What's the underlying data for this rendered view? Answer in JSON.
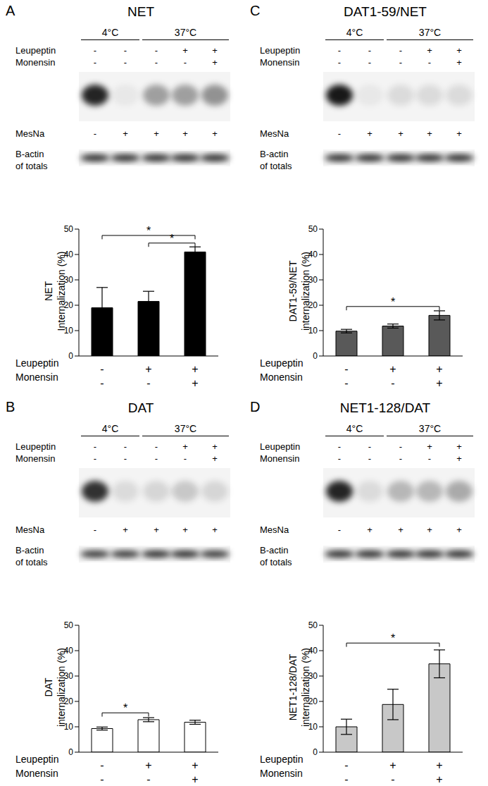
{
  "chart_data": [
    {
      "panel": "A",
      "type": "bar",
      "title": "NET",
      "ylabel": [
        "NET",
        "Internalization (%)"
      ],
      "categories": [
        null,
        null,
        null
      ],
      "values": [
        19,
        21.5,
        41
      ],
      "errors": [
        8,
        4,
        2
      ],
      "color": "#000000",
      "ylim": [
        0,
        50
      ],
      "yticks": [
        0,
        10,
        20,
        30,
        40,
        50
      ],
      "conditions": [
        {
          "name": "Leupeptin",
          "values": [
            "-",
            "+",
            "+"
          ]
        },
        {
          "name": "Monensin",
          "values": [
            "-",
            "-",
            "+"
          ]
        }
      ],
      "significance": [
        {
          "from": 0,
          "to": 2,
          "y": 47.5,
          "label": "*"
        },
        {
          "from": 1,
          "to": 2,
          "y": 44.5,
          "label": "*"
        }
      ],
      "blot": {
        "temperatures": [
          {
            "label": "4°C",
            "lanes": [
              0,
              1
            ]
          },
          {
            "label": "37°C",
            "lanes": [
              2,
              4
            ]
          }
        ],
        "treatments": [
          {
            "name": "Leupeptin",
            "values": [
              "-",
              "-",
              "-",
              "+",
              "+"
            ]
          },
          {
            "name": "Monensin",
            "values": [
              "-",
              "-",
              "-",
              "-",
              "+"
            ]
          }
        ],
        "mesna": {
          "name": "MesNa",
          "values": [
            "-",
            "+",
            "+",
            "+",
            "+"
          ]
        },
        "loading_label": [
          "B-actin",
          "of totals"
        ],
        "band_intensity": [
          0.85,
          0.05,
          0.35,
          0.35,
          0.4
        ],
        "actin_intensity": [
          0.85,
          0.85,
          0.85,
          0.85,
          0.85
        ]
      }
    },
    {
      "panel": "B",
      "type": "bar",
      "title": "DAT",
      "ylabel": [
        "DAT",
        "internalization (%)"
      ],
      "categories": [
        null,
        null,
        null
      ],
      "values": [
        9.3,
        12.8,
        11.8
      ],
      "errors": [
        0.6,
        0.8,
        0.8
      ],
      "color": "#ffffff",
      "ylim": [
        0,
        50
      ],
      "yticks": [
        0,
        10,
        20,
        30,
        40,
        50
      ],
      "conditions": [
        {
          "name": "Leupeptin",
          "values": [
            "-",
            "+",
            "+"
          ]
        },
        {
          "name": "Monensin",
          "values": [
            "-",
            "-",
            "+"
          ]
        }
      ],
      "significance": [
        {
          "from": 0,
          "to": 1,
          "y": 15.5,
          "label": "*"
        }
      ],
      "blot": {
        "temperatures": [
          {
            "label": "4°C",
            "lanes": [
              0,
              1
            ]
          },
          {
            "label": "37°C",
            "lanes": [
              2,
              4
            ]
          }
        ],
        "treatments": [
          {
            "name": "Leupeptin",
            "values": [
              "-",
              "-",
              "-",
              "+",
              "+"
            ]
          },
          {
            "name": "Monensin",
            "values": [
              "-",
              "-",
              "-",
              "-",
              "+"
            ]
          }
        ],
        "mesna": {
          "name": "MesNa",
          "values": [
            "-",
            "+",
            "+",
            "+",
            "+"
          ]
        },
        "loading_label": [
          "B-actin",
          "of totals"
        ],
        "band_intensity": [
          0.8,
          0.1,
          0.12,
          0.18,
          0.12
        ],
        "actin_intensity": [
          0.8,
          0.8,
          0.85,
          0.85,
          0.8
        ]
      }
    },
    {
      "panel": "C",
      "type": "bar",
      "title": "DAT1-59/NET",
      "ylabel": [
        "DAT1-59/NET",
        "internalization (%)"
      ],
      "categories": [
        null,
        null,
        null
      ],
      "values": [
        9.8,
        11.8,
        16
      ],
      "errors": [
        0.7,
        0.8,
        1.8
      ],
      "color": "#595959",
      "ylim": [
        0,
        50
      ],
      "yticks": [
        0,
        10,
        20,
        30,
        40,
        50
      ],
      "conditions": [
        {
          "name": "Leupeptin",
          "values": [
            "-",
            "+",
            "+"
          ]
        },
        {
          "name": "Monensin",
          "values": [
            "-",
            "-",
            "+"
          ]
        }
      ],
      "significance": [
        {
          "from": 0,
          "to": 2,
          "y": 19.5,
          "label": "*"
        }
      ],
      "blot": {
        "temperatures": [
          {
            "label": "4°C",
            "lanes": [
              0,
              1
            ]
          },
          {
            "label": "37°C",
            "lanes": [
              2,
              4
            ]
          }
        ],
        "treatments": [
          {
            "name": "Leupeptin",
            "values": [
              "-",
              "-",
              "-",
              "+",
              "+"
            ]
          },
          {
            "name": "Monensin",
            "values": [
              "-",
              "-",
              "-",
              "-",
              "+"
            ]
          }
        ],
        "mesna": {
          "name": "MesNa",
          "values": [
            "-",
            "+",
            "+",
            "+",
            "+"
          ]
        },
        "loading_label": [
          "B-actin",
          "of totals"
        ],
        "band_intensity": [
          0.9,
          0.05,
          0.1,
          0.1,
          0.1
        ],
        "actin_intensity": [
          0.85,
          0.85,
          0.85,
          0.85,
          0.85
        ]
      }
    },
    {
      "panel": "D",
      "type": "bar",
      "title": "NET1-128/DAT",
      "ylabel": [
        "NET1-128/DAT",
        "internalization (%)"
      ],
      "categories": [
        null,
        null,
        null
      ],
      "values": [
        10,
        18.8,
        34.8
      ],
      "errors": [
        3,
        6,
        5.5
      ],
      "color": "#c8c8c8",
      "ylim": [
        0,
        50
      ],
      "yticks": [
        0,
        10,
        20,
        30,
        40,
        50
      ],
      "conditions": [
        {
          "name": "Leupeptin",
          "values": [
            "-",
            "+",
            "+"
          ]
        },
        {
          "name": "Monensin",
          "values": [
            "-",
            "-",
            "+"
          ]
        }
      ],
      "significance": [
        {
          "from": 0,
          "to": 2,
          "y": 43,
          "label": "*"
        }
      ],
      "blot": {
        "temperatures": [
          {
            "label": "4°C",
            "lanes": [
              0,
              1
            ]
          },
          {
            "label": "37°C",
            "lanes": [
              2,
              4
            ]
          }
        ],
        "treatments": [
          {
            "name": "Leupeptin",
            "values": [
              "-",
              "-",
              "-",
              "+",
              "+"
            ]
          },
          {
            "name": "Monensin",
            "values": [
              "-",
              "-",
              "-",
              "-",
              "+"
            ]
          }
        ],
        "mesna": {
          "name": "MesNa",
          "values": [
            "-",
            "+",
            "+",
            "+",
            "+"
          ]
        },
        "loading_label": [
          "B-actin",
          "of totals"
        ],
        "band_intensity": [
          0.85,
          0.1,
          0.25,
          0.25,
          0.3
        ],
        "actin_intensity": [
          0.85,
          0.85,
          0.85,
          0.85,
          0.85
        ]
      }
    }
  ]
}
